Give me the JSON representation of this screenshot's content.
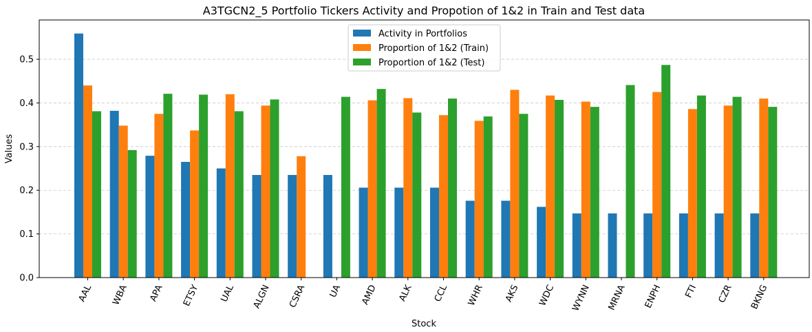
{
  "chart_data": {
    "type": "bar",
    "title": "A3TGCN2_5 Portfolio Tickers Activity and Propotion of 1&2 in Train and Test data",
    "xlabel": "Stock",
    "ylabel": "Values",
    "ylim": [
      0,
      0.59
    ],
    "yticks": [
      "0.0",
      "0.1",
      "0.2",
      "0.3",
      "0.4",
      "0.5"
    ],
    "grid": "y dashed",
    "legend_position": "top-center",
    "categories": [
      "AAL",
      "WBA",
      "APA",
      "ETSY",
      "UAL",
      "ALGN",
      "CSRA",
      "UA",
      "AMD",
      "ALK",
      "CCL",
      "WHR",
      "AKS",
      "WDC",
      "WYNN",
      "MRNA",
      "ENPH",
      "FTI",
      "CZR",
      "BKNG"
    ],
    "series": [
      {
        "name": "Activity in Portfolios",
        "color": "#1f77b4",
        "values": [
          0.559,
          0.382,
          0.279,
          0.265,
          0.25,
          0.235,
          0.235,
          0.235,
          0.206,
          0.206,
          0.206,
          0.176,
          0.176,
          0.162,
          0.147,
          0.147,
          0.147,
          0.147,
          0.147,
          0.147
        ]
      },
      {
        "name": "Proportion of 1&2 (Train)",
        "color": "#ff7f0e",
        "values": [
          0.44,
          0.348,
          0.375,
          0.337,
          0.42,
          0.394,
          0.278,
          0.0,
          0.406,
          0.411,
          0.372,
          0.359,
          0.43,
          0.417,
          0.403,
          0.0,
          0.425,
          0.386,
          0.394,
          0.41
        ]
      },
      {
        "name": "Proportion of 1&2 (Test)",
        "color": "#2ca02c",
        "values": [
          0.381,
          0.292,
          0.421,
          0.419,
          0.381,
          0.408,
          0.0,
          0.414,
          0.432,
          0.378,
          0.41,
          0.369,
          0.375,
          0.407,
          0.391,
          0.441,
          0.487,
          0.417,
          0.414,
          0.391
        ]
      }
    ]
  }
}
